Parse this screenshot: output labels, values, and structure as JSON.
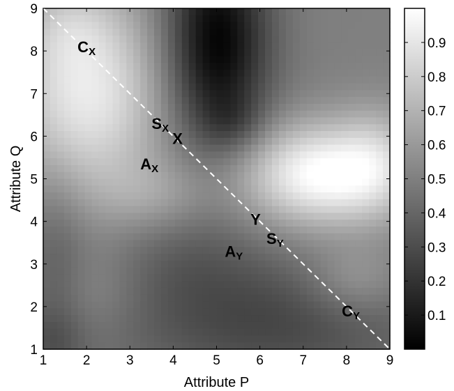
{
  "chart_data": {
    "type": "heatmap",
    "title": "",
    "xlabel": "Attribute P",
    "ylabel": "Attribute Q",
    "xlim": [
      1,
      9
    ],
    "ylim": [
      1,
      9
    ],
    "x_ticks": [
      "1",
      "2",
      "3",
      "4",
      "5",
      "6",
      "7",
      "8",
      "9"
    ],
    "y_ticks": [
      "1",
      "2",
      "3",
      "4",
      "5",
      "6",
      "7",
      "8",
      "9"
    ],
    "colorbar": {
      "colormap": "gray",
      "range": [
        0,
        1
      ],
      "ticks": [
        "0.1",
        "0.2",
        "0.3",
        "0.4",
        "0.5",
        "0.6",
        "0.7",
        "0.8",
        "0.9"
      ]
    },
    "diagonal_line": {
      "from": [
        1,
        9
      ],
      "to": [
        9,
        1
      ],
      "style": "dashed",
      "color": "#ffffff"
    },
    "annotations": [
      {
        "main": "C",
        "sub": "X",
        "x": 2.0,
        "y": 8.1
      },
      {
        "main": "S",
        "sub": "X",
        "x": 3.7,
        "y": 6.3
      },
      {
        "main": "X",
        "sub": "",
        "x": 4.1,
        "y": 5.95
      },
      {
        "main": "A",
        "sub": "X",
        "x": 3.45,
        "y": 5.35
      },
      {
        "main": "Y",
        "sub": "",
        "x": 5.9,
        "y": 4.05
      },
      {
        "main": "S",
        "sub": "Y",
        "x": 6.35,
        "y": 3.6
      },
      {
        "main": "A",
        "sub": "Y",
        "x": 5.4,
        "y": 3.3
      },
      {
        "main": "C",
        "sub": "Y",
        "x": 8.1,
        "y": 1.9
      }
    ]
  }
}
